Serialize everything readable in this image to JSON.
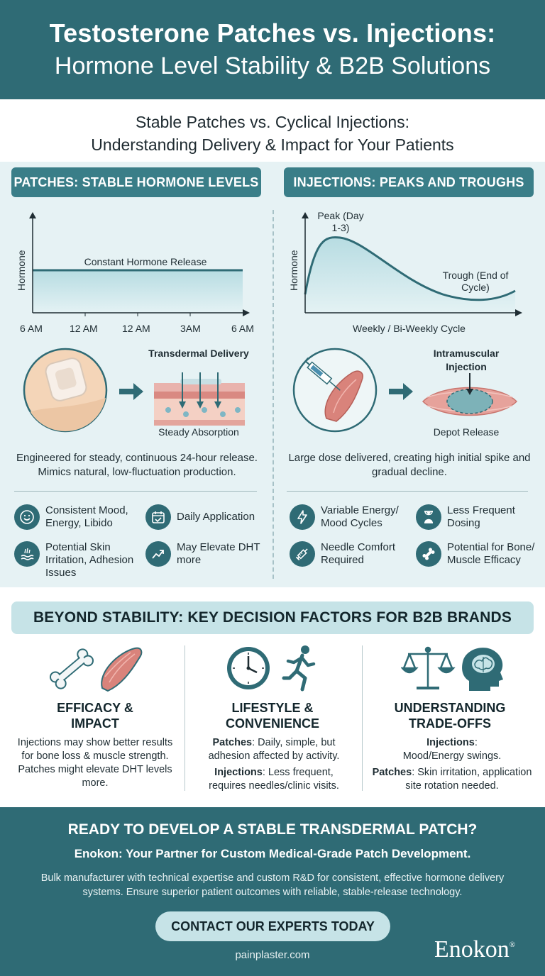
{
  "header": {
    "title_line1": "Testosterone Patches vs. Injections:",
    "title_line2": "Hormone Level Stability & B2B Solutions"
  },
  "subtitle": {
    "line1": "Stable Patches vs. Cyclical Injections:",
    "line2": "Understanding Delivery & Impact for Your Patients"
  },
  "patches": {
    "heading": "PATCHES: STABLE HORMONE LEVELS",
    "chart": {
      "ylabel": "Hormone",
      "series_label": "Constant Hormone Release",
      "x_ticks": [
        "6 AM",
        "12 AM",
        "12 AM",
        "3AM",
        "6 AM"
      ]
    },
    "illus_title": "Transdermal Delivery",
    "illus_caption": "Steady Absorption",
    "description": "Engineered for steady, continuous 24-hour release. Mimics natural, low-fluctuation production.",
    "features": [
      {
        "icon": "smile-icon",
        "label": "Consistent Mood, Energy, Libido"
      },
      {
        "icon": "calendar-check-icon",
        "label": "Daily Application"
      },
      {
        "icon": "skin-irritation-icon",
        "label": "Potential Skin Irritation, Adhesion Issues"
      },
      {
        "icon": "trend-up-icon",
        "label": "May Elevate DHT more"
      }
    ]
  },
  "injections": {
    "heading": "INJECTIONS: PEAKS AND TROUGHS",
    "chart": {
      "ylabel": "Hormone",
      "peak_label": "Peak (Day 1-3)",
      "trough_label": "Trough (End of Cycle)",
      "xlabel": "Weekly / Bi-Weekly Cycle"
    },
    "illus_title": "Intramuscular Injection",
    "illus_caption": "Depot Release",
    "description": "Large dose delivered, creating high initial spike and gradual decline.",
    "features": [
      {
        "icon": "lightning-icon",
        "label": "Variable Energy/ Mood Cycles"
      },
      {
        "icon": "hourglass-icon",
        "label": "Less Frequent Dosing"
      },
      {
        "icon": "syringe-icon",
        "label": "Needle Comfort Required"
      },
      {
        "icon": "bone-icon",
        "label": "Potential for Bone/ Muscle Efficacy"
      }
    ]
  },
  "factors": {
    "heading": "BEYOND STABILITY: KEY DECISION FACTORS FOR B2B BRANDS",
    "columns": [
      {
        "title": "EFFICACY & IMPACT",
        "body": "Injections may show better results for bone loss & muscle strength. Patches might elevate DHT levels more."
      },
      {
        "title": "LIFESTYLE & CONVENIENCE",
        "p1_bold": "Patches",
        "p1_text": ": Daily, simple, but adhesion affected by activity.",
        "p2_bold": "Injections",
        "p2_text": ": Less frequent, requires needles/clinic visits."
      },
      {
        "title": "UNDERSTANDING TRADE-OFFS",
        "p1_bold": "Injections",
        "p1_text": ": Mood/Energy swings.",
        "p2_bold": "Patches",
        "p2_text": ": Skin irritation, application site rotation needed."
      }
    ]
  },
  "footer": {
    "headline": "READY TO DEVELOP A STABLE TRANSDERMAL PATCH?",
    "tagline": "Enokon: Your Partner for Custom Medical-Grade Patch Development.",
    "body": "Bulk manufacturer with technical expertise and custom R&D for consistent, effective hormone delivery systems. Ensure superior patient outcomes with reliable, stable-release technology.",
    "cta": "CONTACT OUR EXPERTS TODAY",
    "url": "painplaster.com",
    "logo": "Enokon",
    "logo_mark": "®"
  },
  "colors": {
    "primary": "#2f6b75",
    "accent": "#3a7e88",
    "light": "#e6f2f4",
    "pale": "#c6e3e7"
  }
}
